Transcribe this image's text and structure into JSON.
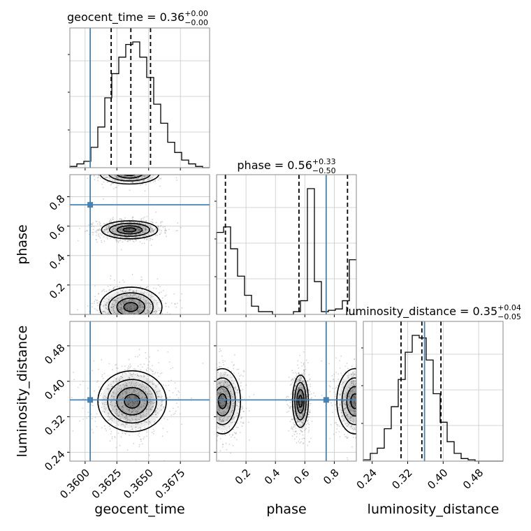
{
  "chart_data": {
    "type": "corner",
    "parameters": [
      "geocent_time",
      "phase",
      "luminosity_distance"
    ],
    "ranges": {
      "geocent_time": [
        0.3588,
        0.3698
      ],
      "phase": [
        0.0,
        0.95
      ],
      "luminosity_distance": [
        0.22,
        0.535
      ]
    },
    "truths": {
      "geocent_time": 0.3604,
      "phase": 0.745,
      "luminosity_distance": 0.358
    },
    "titles": [
      {
        "param": "geocent_time",
        "label": "geocent_time = 0.36",
        "plus": "+0.00",
        "minus": "−0.00"
      },
      {
        "param": "phase",
        "label": "phase = 0.56",
        "plus": "+0.33",
        "minus": "−0.50"
      },
      {
        "param": "luminosity_distance",
        "label": "luminosity_distance = 0.35",
        "plus": "+0.04",
        "minus": "−0.05"
      }
    ],
    "quantiles": {
      "geocent_time": [
        0.36205,
        0.3636,
        0.36515
      ],
      "phase": [
        0.06,
        0.56,
        0.89
      ],
      "luminosity_distance": [
        0.305,
        0.352,
        0.395
      ]
    },
    "axis_labels": {
      "geocent_time": "geocent_time",
      "phase": "phase",
      "luminosity_distance": "luminosity_distance"
    },
    "ticks": {
      "geocent_time": {
        "values": [
          0.36,
          0.3625,
          0.365,
          0.3675
        ],
        "labels": [
          "0.3600",
          "0.3625",
          "0.3650",
          "0.3675"
        ]
      },
      "phase_x": {
        "values": [
          0.2,
          0.4,
          0.6,
          0.8
        ],
        "labels": [
          "0.2",
          "0.4",
          "0.6",
          "0.8"
        ]
      },
      "phase_y": {
        "values": [
          0.2,
          0.4,
          0.6,
          0.8
        ],
        "labels": [
          "0.2",
          "0.4",
          "0.6",
          "0.8"
        ]
      },
      "luminosity_distance": {
        "values": [
          0.24,
          0.32,
          0.4,
          0.48
        ],
        "labels": [
          "0.24",
          "0.32",
          "0.40",
          "0.48"
        ]
      }
    },
    "histograms": {
      "geocent_time": {
        "edges_start": 0.3588,
        "bin_width": 0.00055,
        "counts": [
          1,
          3,
          5,
          16,
          32,
          55,
          74,
          87,
          97,
          99,
          87,
          71,
          50,
          35,
          20,
          12,
          6,
          3,
          1,
          0
        ]
      },
      "phase": {
        "edges_start": 0.0,
        "bin_width": 0.0475,
        "counts": [
          60,
          64,
          48,
          28,
          14,
          6,
          2,
          2,
          0,
          0,
          0,
          2,
          10,
          92,
          24,
          2,
          3,
          4,
          10,
          40
        ]
      },
      "luminosity_distance": {
        "edges_start": 0.22,
        "bin_width": 0.01575,
        "counts": [
          1,
          6,
          10,
          25,
          42,
          63,
          84,
          97,
          95,
          78,
          52,
          30,
          15,
          6,
          2,
          1,
          0,
          0,
          0,
          0
        ]
      }
    },
    "contour_blobs": {
      "geocent_time_vs_phase": [
        {
          "cx": 0.3635,
          "cy": 0.96,
          "sx": 0.00095,
          "sy": 0.03,
          "weight": 0.6
        },
        {
          "cx": 0.3635,
          "cy": 0.575,
          "sx": 0.0009,
          "sy": 0.025,
          "weight": 1.0
        },
        {
          "cx": 0.3636,
          "cy": 0.05,
          "sx": 0.001,
          "sy": 0.055,
          "weight": 0.9
        }
      ],
      "geocent_time_vs_luminosity_distance": [
        {
          "cx": 0.3637,
          "cy": 0.355,
          "sx": 0.0011,
          "sy": 0.028,
          "weight": 1.0
        }
      ],
      "phase_vs_luminosity_distance": [
        {
          "cx": 0.04,
          "cy": 0.355,
          "sx": 0.05,
          "sy": 0.03,
          "weight": 0.8
        },
        {
          "cx": 0.57,
          "cy": 0.355,
          "sx": 0.022,
          "sy": 0.024,
          "weight": 1.0
        },
        {
          "cx": 0.94,
          "cy": 0.355,
          "sx": 0.05,
          "sy": 0.03,
          "weight": 0.8
        }
      ]
    },
    "colors": {
      "hist_line": "#000000",
      "quantile_line": "#000000",
      "truth_line": "#4682b4",
      "scatter_points": "#7f7f7f",
      "grid": "#c8c8c8"
    },
    "grid": true
  }
}
